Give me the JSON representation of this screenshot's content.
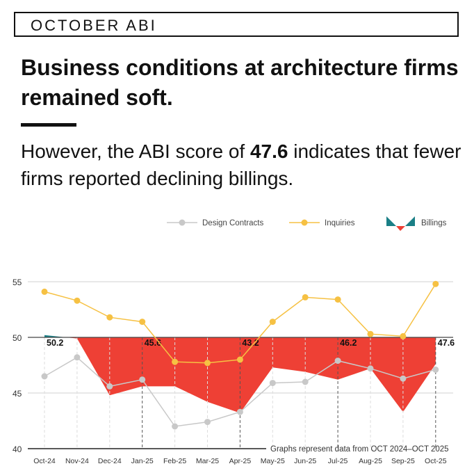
{
  "header": {
    "tag": "OCTOBER ABI",
    "title": "Business conditions at architecture firms remained soft.",
    "subtitle_pre": "However, the ABI score of ",
    "subtitle_bold": "47.6",
    "subtitle_post": " indicates that fewer firms reported declining billings."
  },
  "chart_data": {
    "type": "line",
    "categories": [
      "Oct-24",
      "Nov-24",
      "Dec-24",
      "Jan-25",
      "Feb-25",
      "Mar-25",
      "Apr-25",
      "May-25",
      "Jun-25",
      "Jul-25",
      "Aug-25",
      "Sep-25",
      "Oct-25"
    ],
    "ylim": [
      40,
      55
    ],
    "yticks": [
      40,
      45,
      50,
      55
    ],
    "baseline": 50,
    "grid": true,
    "legend_position": "top-right",
    "note": "Graphs represent data from OCT 2024–OCT 2025",
    "series": [
      {
        "name": "Design Contracts",
        "type": "line",
        "color": "#c8c8c8",
        "values": [
          46.5,
          48.2,
          45.6,
          46.2,
          42.0,
          42.4,
          43.3,
          45.9,
          46.0,
          47.9,
          47.2,
          46.3,
          47.1
        ]
      },
      {
        "name": "Inquiries",
        "type": "line",
        "color": "#f6c143",
        "values": [
          54.1,
          53.3,
          51.8,
          51.4,
          47.8,
          47.7,
          48.0,
          51.4,
          53.6,
          53.4,
          50.3,
          50.1,
          54.8
        ]
      },
      {
        "name": "Billings",
        "type": "area",
        "color_below": "#ee4035",
        "color_above": "#1a7f86",
        "values": [
          50.2,
          49.9,
          44.8,
          45.6,
          45.6,
          44.2,
          43.2,
          47.3,
          46.9,
          46.2,
          47.2,
          43.3,
          47.6
        ]
      }
    ],
    "data_labels": [
      {
        "index": 0,
        "text": "50.2"
      },
      {
        "index": 3,
        "text": "45.6"
      },
      {
        "index": 6,
        "text": "43.2"
      },
      {
        "index": 9,
        "text": "46.2"
      },
      {
        "index": 12,
        "text": "47.6"
      }
    ]
  }
}
